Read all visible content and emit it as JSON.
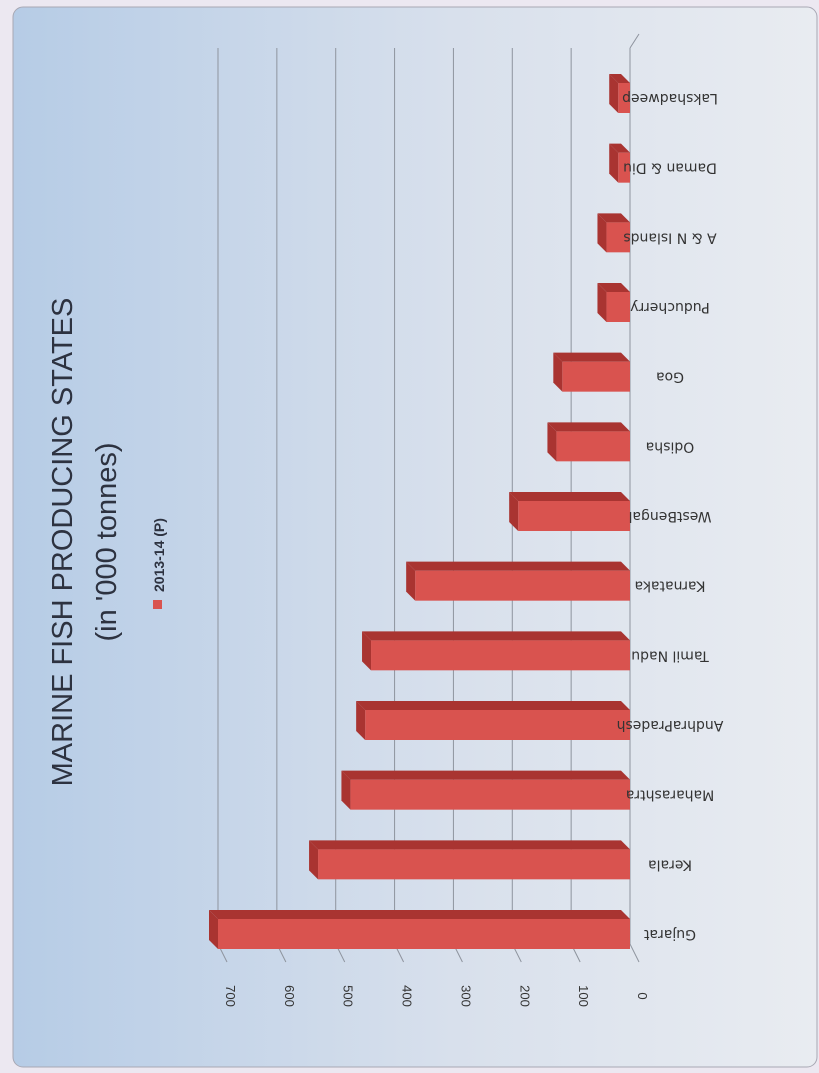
{
  "chart_data": {
    "type": "bar",
    "title_line1": "MARINE FISH PRODUCING STATES",
    "title_line2": "(in '000 tonnes)",
    "legend": "2013-14 (P)",
    "categories": [
      "Gujarat",
      "Kerala",
      "Maharashtra",
      "AndhraPradesh",
      "Tamil Nadu",
      "Karnataka",
      "WestBengal",
      "Odisha",
      "Goa",
      "Puducherry",
      "A & N Islands",
      "Daman & Diu",
      "Lakshadweep"
    ],
    "series": [
      {
        "name": "2013-14 (P)",
        "values": [
          700,
          530,
          475,
          450,
          440,
          365,
          190,
          125,
          115,
          40,
          40,
          20,
          20
        ]
      }
    ],
    "ylim": [
      0,
      700
    ],
    "yticks": [
      0,
      100,
      200,
      300,
      400,
      500,
      600,
      700
    ],
    "grid": true,
    "orientation": "rotated 90 degrees (bars extend leftward from the baseline)",
    "legend_position": "below title",
    "colors": {
      "bar": "#d9534f",
      "bar_dark": "#a93431",
      "bar_light": "#ec8a86",
      "title": "#2d3240",
      "background_light": "#e6eaf1",
      "background_dark": "#b7cde6"
    }
  }
}
